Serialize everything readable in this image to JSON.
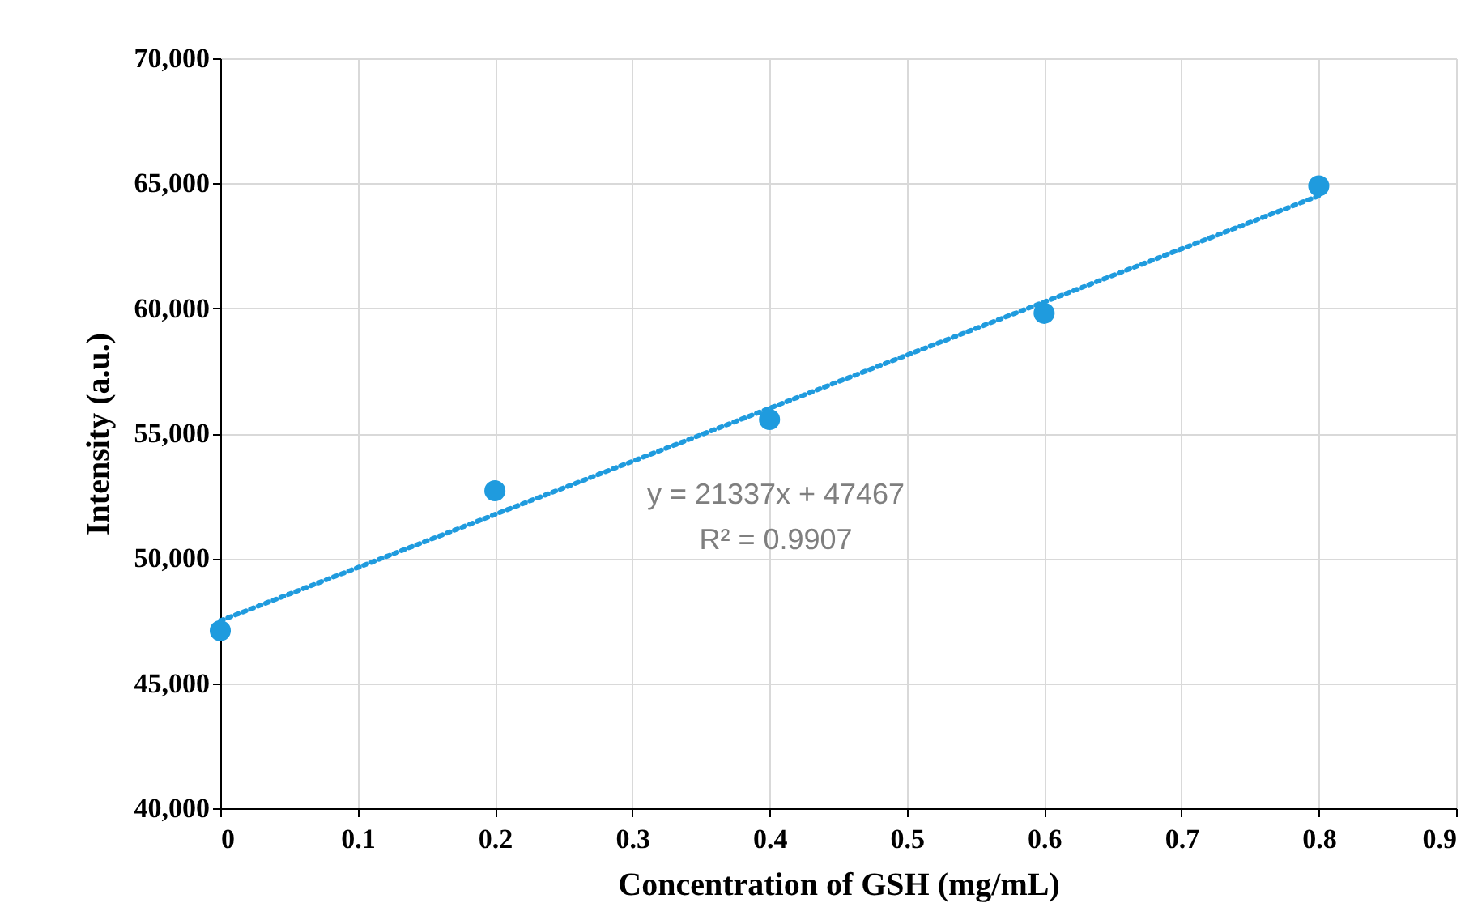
{
  "chart_data": {
    "type": "scatter",
    "xlabel": "Concentration of GSH (mg/mL)",
    "ylabel": "Intensity (a.u.)",
    "x": [
      0,
      0.2,
      0.4,
      0.6,
      0.8
    ],
    "series": [
      {
        "color": "#1f9bde",
        "values": [
          47100,
          52700,
          55550,
          59800,
          64900
        ],
        "marker": "circle"
      },
      {
        "type": "line",
        "color": "#1f9bde",
        "x": [
          0,
          0.8
        ],
        "values": [
          47500,
          64500
        ],
        "line_style": "dotted",
        "marker": "none"
      }
    ],
    "xlim": [
      0,
      0.9
    ],
    "xticks": [
      0,
      0.1,
      0.2,
      0.3,
      0.4,
      0.5,
      0.6,
      0.7,
      0.8,
      0.9
    ],
    "ylim": [
      40000,
      70000
    ],
    "yticks": [
      {
        "value": 40000,
        "label": "40,000"
      },
      {
        "value": 45000,
        "label": "45,000"
      },
      {
        "value": 50000,
        "label": "50,000"
      },
      {
        "value": 55000,
        "label": "55,000"
      },
      {
        "value": 60000,
        "label": "60,000"
      },
      {
        "value": 65000,
        "label": "65,000"
      },
      {
        "value": 70000,
        "label": "70,000"
      }
    ],
    "grid": true,
    "annotations": [
      "y = 21337x + 47467",
      "R² = 0.9907"
    ]
  }
}
